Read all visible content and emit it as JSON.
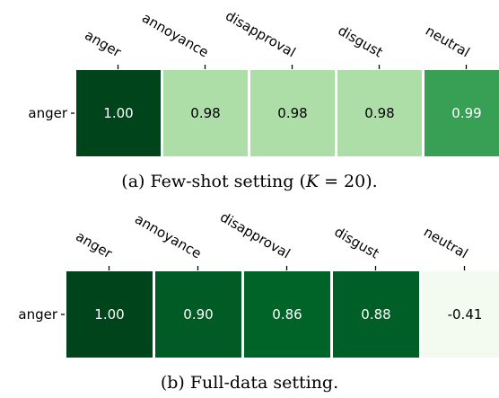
{
  "chart_data": [
    {
      "type": "heatmap",
      "rows": [
        "anger"
      ],
      "columns": [
        "anger",
        "annoyance",
        "disapproval",
        "disgust",
        "neutral"
      ],
      "values": [
        [
          1.0,
          0.98,
          0.98,
          0.98,
          0.99
        ]
      ],
      "value_labels": [
        [
          "1.00",
          "0.98",
          "0.98",
          "0.98",
          "0.99"
        ]
      ],
      "colormap": "Greens",
      "color_scale": [
        0.97,
        1.0
      ],
      "caption_prefix": "(a) Few-shot setting (",
      "caption_math_var": "K",
      "caption_math_rest": " = 20).",
      "caption_suffix": ""
    },
    {
      "type": "heatmap",
      "rows": [
        "anger"
      ],
      "columns": [
        "anger",
        "annoyance",
        "disapproval",
        "disgust",
        "neutral"
      ],
      "values": [
        [
          1.0,
          0.9,
          0.86,
          0.88,
          -0.41
        ]
      ],
      "value_labels": [
        [
          "1.00",
          "0.90",
          "0.86",
          "0.88",
          "-0.41"
        ]
      ],
      "colormap": "Greens",
      "color_scale": [
        -0.45,
        1.0
      ],
      "caption_prefix": "(b) Full-data setting.",
      "caption_math_var": "",
      "caption_math_rest": "",
      "caption_suffix": ""
    }
  ]
}
